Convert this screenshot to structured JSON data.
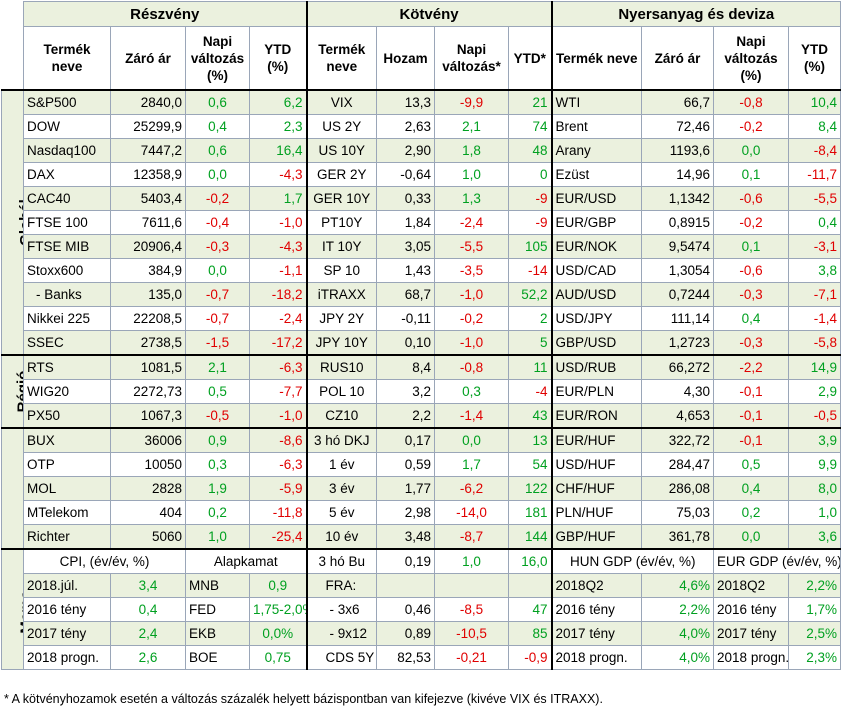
{
  "sections": {
    "stocks": "Részvény",
    "bonds": "Kötvény",
    "commod": "Nyersanyag és deviza"
  },
  "subheaders": {
    "stocks": [
      "Termék neve",
      "Záró ár",
      "Napi változás (%)",
      "YTD (%)"
    ],
    "bonds": [
      "Termék neve",
      "Hozam",
      "Napi változás*",
      "YTD*"
    ],
    "commod": [
      "Termék neve",
      "Záró ár",
      "Napi változás (%)",
      "YTD (%)"
    ]
  },
  "groups": {
    "global": "Globál",
    "region": "Régió",
    "hungary": "Magyar",
    "memo": "Memo:"
  },
  "rows": [
    [
      "S&P500",
      "2840,0",
      "0,6",
      "6,2",
      "VIX",
      "13,3",
      "-9,9",
      "21",
      "WTI",
      "66,7",
      "-0,8",
      "10,4"
    ],
    [
      "DOW",
      "25299,9",
      "0,4",
      "2,3",
      "US 2Y",
      "2,63",
      "2,1",
      "74",
      "Brent",
      "72,46",
      "-0,2",
      "8,4"
    ],
    [
      "Nasdaq100",
      "7447,2",
      "0,6",
      "16,4",
      "US 10Y",
      "2,90",
      "1,8",
      "48",
      "Arany",
      "1193,6",
      "0,0",
      "-8,4"
    ],
    [
      "DAX",
      "12358,9",
      "0,0",
      "-4,3",
      "GER 2Y",
      "-0,64",
      "1,0",
      "0",
      "Ezüst",
      "14,96",
      "0,1",
      "-11,7"
    ],
    [
      "CAC40",
      "5403,4",
      "-0,2",
      "1,7",
      "GER 10Y",
      "0,33",
      "1,3",
      "-9",
      "EUR/USD",
      "1,1342",
      "-0,6",
      "-5,5"
    ],
    [
      "FTSE 100",
      "7611,6",
      "-0,4",
      "-1,0",
      "PT10Y",
      "1,84",
      "-2,4",
      "-9",
      "EUR/GBP",
      "0,8915",
      "-0,2",
      "0,4"
    ],
    [
      "FTSE MIB",
      "20906,4",
      "-0,3",
      "-4,3",
      "IT 10Y",
      "3,05",
      "-5,5",
      "105",
      "EUR/NOK",
      "9,5474",
      "0,1",
      "-3,1"
    ],
    [
      "Stoxx600",
      "384,9",
      "0,0",
      "-1,1",
      "SP 10",
      "1,43",
      "-3,5",
      "-14",
      "USD/CAD",
      "1,3054",
      "-0,6",
      "3,8"
    ],
    [
      "  - Banks",
      "135,0",
      "-0,7",
      "-18,2",
      "iTRAXX",
      "68,7",
      "-1,0",
      "52,2",
      "AUD/USD",
      "0,7244",
      "-0,3",
      "-7,1"
    ],
    [
      "Nikkei 225",
      "22208,5",
      "-0,7",
      "-2,4",
      "JPY 2Y",
      "-0,11",
      "-0,2",
      "2",
      "USD/JPY",
      "111,14",
      "0,4",
      "-1,4"
    ],
    [
      "SSEC",
      "2738,5",
      "-1,5",
      "-17,2",
      "JPY 10Y",
      "0,10",
      "-1,0",
      "5",
      "GBP/USD",
      "1,2723",
      "-0,3",
      "-5,8"
    ],
    [
      "RTS",
      "1081,5",
      "2,1",
      "-6,3",
      "RUS10",
      "8,4",
      "-0,8",
      "11",
      "USD/RUB",
      "66,272",
      "-2,2",
      "14,9"
    ],
    [
      "WIG20",
      "2272,73",
      "0,5",
      "-7,7",
      "POL 10",
      "3,2",
      "0,3",
      "-4",
      "EUR/PLN",
      "4,30",
      "-0,1",
      "2,9"
    ],
    [
      "PX50",
      "1067,3",
      "-0,5",
      "-1,0",
      "CZ10",
      "2,2",
      "-1,4",
      "43",
      "EUR/RON",
      "4,653",
      "-0,1",
      "-0,5"
    ],
    [
      "BUX",
      "36006",
      "0,9",
      "-8,6",
      "3 hó DKJ",
      "0,17",
      "0,0",
      "13",
      "EUR/HUF",
      "322,72",
      "-0,1",
      "3,9"
    ],
    [
      "OTP",
      "10050",
      "0,3",
      "-6,3",
      "1 év",
      "0,59",
      "1,7",
      "54",
      "USD/HUF",
      "284,47",
      "0,5",
      "9,9"
    ],
    [
      "MOL",
      "2828",
      "1,9",
      "-5,9",
      "3 év",
      "1,77",
      "-6,2",
      "122",
      "CHF/HUF",
      "286,08",
      "0,4",
      "8,0"
    ],
    [
      "MTelekom",
      "404",
      "0,2",
      "-11,8",
      "5 év",
      "2,98",
      "-14,0",
      "181",
      "PLN/HUF",
      "75,03",
      "0,2",
      "1,0"
    ],
    [
      "Richter",
      "5060",
      "1,0",
      "-25,4",
      "10 év",
      "3,48",
      "-8,7",
      "144",
      "GBP/HUF",
      "361,78",
      "0,0",
      "3,6"
    ]
  ],
  "memo": {
    "cpi_title": "CPI, (év/év, %)",
    "rate_title": "Alapkamat",
    "bu_label": "3 hó Bu",
    "bu_v1": "0,19",
    "bu_v2": "1,0",
    "bu_v3": "16,0",
    "hun_title": "HUN GDP (év/év, %)",
    "eur_title": "EUR GDP (év/év, %)",
    "lines": [
      [
        "2018.júl.",
        "3,4",
        "MNB",
        "0,9",
        "FRA:",
        "",
        "",
        "",
        "2018Q2",
        "4,6%",
        "2018Q2",
        "2,2%"
      ],
      [
        "2016 tény",
        "0,4",
        "FED",
        "1,75-2,0%",
        "  - 3x6",
        "0,46",
        "-8,5",
        "47",
        "2016 tény",
        "2,2%",
        "2016 tény",
        "1,7%"
      ],
      [
        "2017 tény",
        "2,4",
        "EKB",
        "0,0%",
        "  - 9x12",
        "0,89",
        "-10,5",
        "85",
        "2017 tény",
        "4,0%",
        "2017 tény",
        "2,5%"
      ],
      [
        "2018 progn.",
        "2,6",
        "BOE",
        "0,75",
        "CDS 5Y",
        "82,53",
        "-0,21",
        "-0,9",
        "2018 progn.",
        "4,0%",
        "2018 progn.",
        "2,3%"
      ]
    ]
  },
  "footnote": "* A kötvényhozamok esetén a változás százalék helyett bázispontban van kifejezve (kivéve VIX és ITRAXX)."
}
